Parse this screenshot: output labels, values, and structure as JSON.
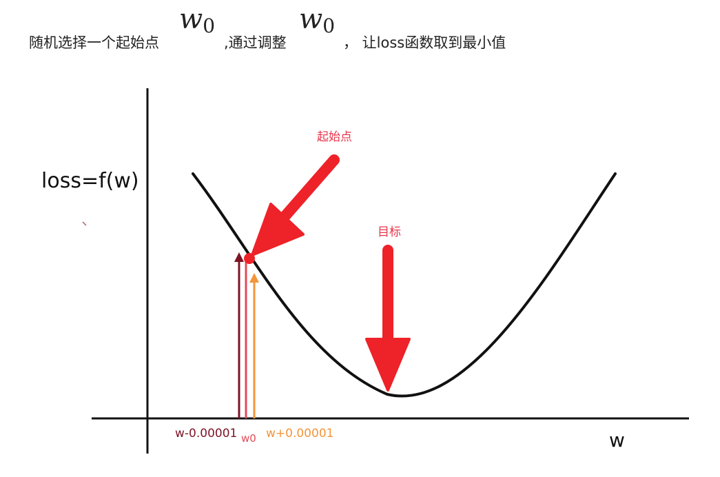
{
  "header": {
    "part1": "随机选择一个起始点",
    "w0_a_base": "w",
    "w0_a_sub": "0",
    "part2": ",通过调整",
    "w0_b_base": "w",
    "w0_b_sub": "0",
    "part3": "， 让loss函数取到最小值"
  },
  "diagram": {
    "y_axis_label": "loss=f(w)",
    "x_axis_label": "w",
    "start_point_label": "起始点",
    "target_label": "目标",
    "tick_minus": "w-0.00001",
    "tick_w0": "w0",
    "tick_plus": "w+0.00001"
  },
  "colors": {
    "arrow_red": "#ee2229",
    "label_red": "#e8354a",
    "minus_arrow": "#7d1426",
    "plus_arrow": "#f3953b",
    "w0_arrow": "#e24a57",
    "curve": "#111111"
  }
}
